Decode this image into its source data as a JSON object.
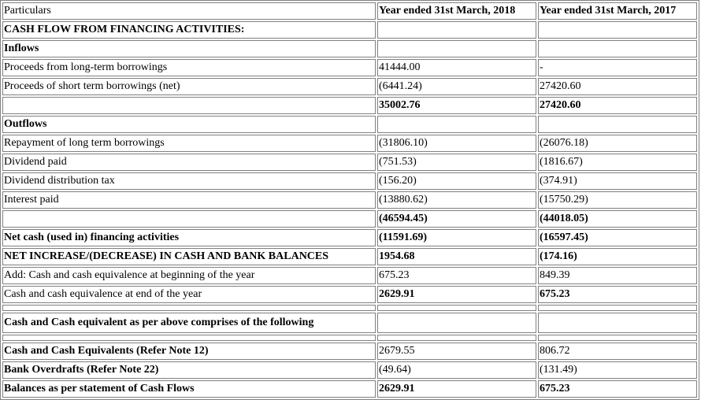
{
  "header": {
    "particulars": "Particulars",
    "year_2018": "Year ended 31st March, 2018",
    "year_2017": "Year ended 31st March, 2017"
  },
  "rows": [
    {
      "label": "CASH FLOW FROM FINANCING ACTIVITIES:",
      "v2018": "",
      "v2017": ""
    },
    {
      "label": "Inflows",
      "v2018": "",
      "v2017": ""
    },
    {
      "label": "Proceeds from long-term borrowings",
      "v2018": "41444.00",
      "v2017": "-"
    },
    {
      "label": "Proceeds of short term borrowings (net)",
      "v2018": "(6441.24)",
      "v2017": "27420.60"
    },
    {
      "label": "",
      "v2018": "35002.76",
      "v2017": "27420.60"
    },
    {
      "label": "Outflows",
      "v2018": "",
      "v2017": ""
    },
    {
      "label": "Repayment of long term borrowings",
      "v2018": "(31806.10)",
      "v2017": "(26076.18)"
    },
    {
      "label": "Dividend paid",
      "v2018": "(751.53)",
      "v2017": "(1816.67)"
    },
    {
      "label": "Dividend distribution tax",
      "v2018": "(156.20)",
      "v2017": "(374.91)"
    },
    {
      "label": "Interest paid",
      "v2018": "(13880.62)",
      "v2017": "(15750.29)"
    },
    {
      "label": "",
      "v2018": "(46594.45)",
      "v2017": "(44018.05)"
    },
    {
      "label": "Net cash (used in) financing activities",
      "v2018": "(11591.69)",
      "v2017": "(16597.45)"
    },
    {
      "label": "NET INCREASE/(DECREASE) IN CASH AND BANK BALANCES",
      "v2018": "1954.68",
      "v2017": "(174.16)"
    },
    {
      "label": "Add: Cash and cash equivalence at beginning of the year",
      "v2018": "675.23",
      "v2017": "849.39"
    },
    {
      "label": "Cash and cash equivalence at end of the year",
      "v2018": "2629.91",
      "v2017": "675.23"
    },
    {
      "label": "Cash and Cash equivalent as per above comprises of the following",
      "v2018": "",
      "v2017": ""
    },
    {
      "label": "Cash and Cash Equivalents (Refer Note 12)",
      "v2018": "2679.55",
      "v2017": "806.72"
    },
    {
      "label": "Bank Overdrafts (Refer Note 22)",
      "v2018": "(49.64)",
      "v2017": "(131.49)"
    },
    {
      "label": "Balances as per statement of Cash Flows",
      "v2018": "2629.91",
      "v2017": "675.23"
    }
  ]
}
